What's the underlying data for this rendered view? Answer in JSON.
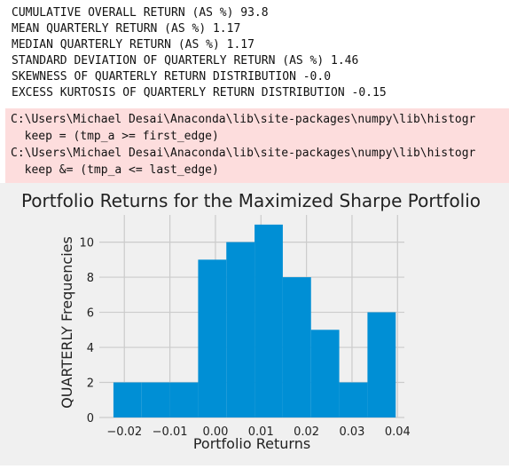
{
  "stats_output": [
    "CUMULATIVE OVERALL RETURN (AS %) 93.8",
    "MEAN QUARTERLY RETURN (AS %) 1.17",
    "MEDIAN QUARTERLY RETURN (AS %) 1.17",
    "STANDARD DEVIATION OF QUARTERLY RETURN (AS %) 1.46",
    "SKEWNESS OF QUARTERLY RETURN DISTRIBUTION -0.0",
    "EXCESS KURTOSIS OF QUARTERLY RETURN DISTRIBUTION -0.15"
  ],
  "stderr_output": [
    "C:\\Users\\Michael Desai\\Anaconda\\lib\\site-packages\\numpy\\lib\\histogr",
    "  keep = (tmp_a >= first_edge)",
    "C:\\Users\\Michael Desai\\Anaconda\\lib\\site-packages\\numpy\\lib\\histogr",
    "  keep &= (tmp_a <= last_edge)"
  ],
  "colors": {
    "bar": "#008fd5",
    "plot_bg": "#f0f0f0",
    "grid": "#cbcbcb",
    "stderr_bg": "#fddddd"
  },
  "chart_data": {
    "type": "bar",
    "title": "Portfolio Returns for the Maximized Sharpe Portfolio",
    "xlabel": "Portfolio Returns",
    "ylabel": "QUARTERLY Frequencies",
    "bins": [
      {
        "x0": -0.0224,
        "x1": -0.0162,
        "value": 2
      },
      {
        "x0": -0.0162,
        "x1": -0.01,
        "value": 2
      },
      {
        "x0": -0.01,
        "x1": -0.0038,
        "value": 2
      },
      {
        "x0": -0.0038,
        "x1": 0.0024,
        "value": 9
      },
      {
        "x0": 0.0024,
        "x1": 0.0086,
        "value": 10
      },
      {
        "x0": 0.0086,
        "x1": 0.0148,
        "value": 11
      },
      {
        "x0": 0.0148,
        "x1": 0.021,
        "value": 8
      },
      {
        "x0": 0.021,
        "x1": 0.0272,
        "value": 5
      },
      {
        "x0": 0.0272,
        "x1": 0.0334,
        "value": 2
      },
      {
        "x0": 0.0334,
        "x1": 0.0396,
        "value": 6
      }
    ],
    "xlim": [
      -0.0255,
      0.0415
    ],
    "ylim": [
      0,
      11.55
    ],
    "xticks": [
      -0.02,
      -0.01,
      0.0,
      0.01,
      0.02,
      0.03,
      0.04
    ],
    "xtick_labels": [
      "−0.02",
      "−0.01",
      "0.00",
      "0.01",
      "0.02",
      "0.03",
      "0.04"
    ],
    "yticks": [
      0,
      2,
      4,
      6,
      8,
      10
    ],
    "ytick_labels": [
      "0",
      "2",
      "4",
      "6",
      "8",
      "10"
    ],
    "grid": true,
    "legend": "none"
  }
}
